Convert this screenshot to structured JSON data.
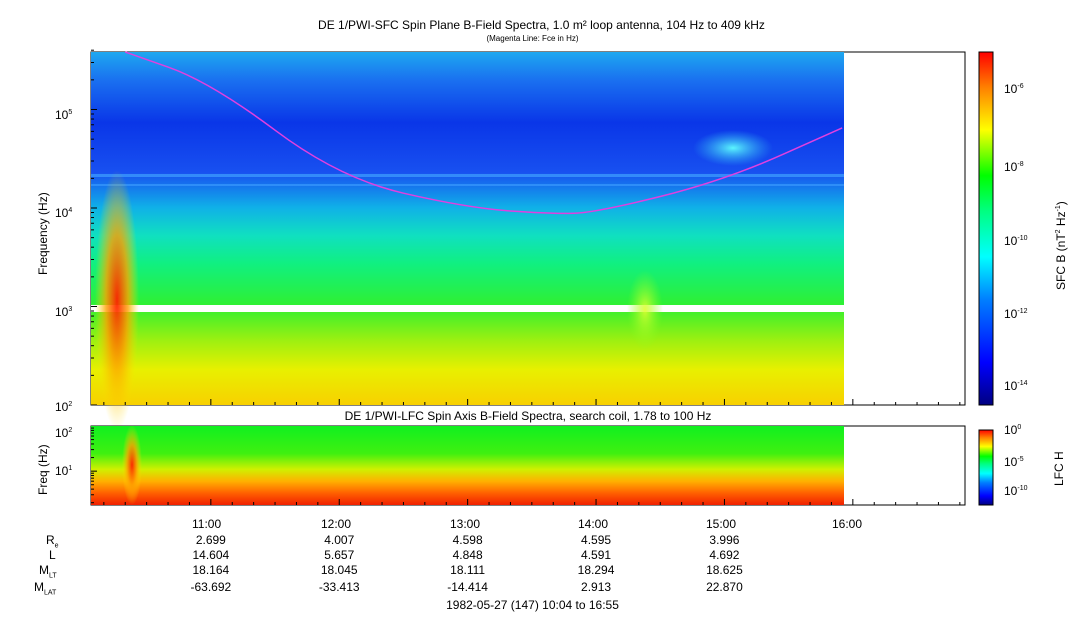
{
  "top_panel": {
    "title": "DE 1/PWI-SFC  Spin Plane B-Field Spectra, 1.0 m² loop antenna, 104 Hz to 409 kHz",
    "subtitle": "(Magenta Line: Fce in Hz)",
    "ylabel": "Frequency (Hz)",
    "yticks": [
      "10",
      "10",
      "10",
      "10"
    ],
    "ytick_exps": [
      "2",
      "3",
      "4",
      "5"
    ],
    "colorbar_label": "SFC B (nT",
    "colorbar_label_sup1": "2",
    "colorbar_label_mid": " Hz",
    "colorbar_label_sup2": "-1",
    "colorbar_label_end": ")",
    "colorbar_ticks": [
      "10",
      "10",
      "10",
      "10",
      "10"
    ],
    "colorbar_exps": [
      "-6",
      "-8",
      "-10",
      "-12",
      "-14"
    ]
  },
  "bottom_panel": {
    "title": "DE 1/PWI-LFC  Spin Axis B-Field Spectra, search coil, 1.78 to 100 Hz",
    "ylabel": "Freq (Hz)",
    "yticks": [
      "10",
      "10"
    ],
    "ytick_exps": [
      "2",
      "1"
    ],
    "colorbar_label": "LFC H",
    "colorbar_ticks": [
      "10",
      "10",
      "10"
    ],
    "colorbar_exps": [
      "0",
      "-5",
      "-10"
    ]
  },
  "time_axis": {
    "ticks": [
      "11:00",
      "12:00",
      "13:00",
      "14:00",
      "15:00",
      "16:00"
    ],
    "footer": "1982-05-27 (147) 10:04 to 16:55"
  },
  "ephemeris": {
    "labels": {
      "re": "R",
      "re_sub": "e",
      "l": "L",
      "mlt": "M",
      "mlt_sub": "LT",
      "mlat": "M",
      "mlat_sub": "LAT"
    },
    "rows": [
      {
        "time": "11:00",
        "re": "2.699",
        "l": "14.604",
        "mlt": "18.164",
        "mlat": "-63.692"
      },
      {
        "time": "12:00",
        "re": "4.007",
        "l": "5.657",
        "mlt": "18.045",
        "mlat": "-33.413"
      },
      {
        "time": "13:00",
        "re": "4.598",
        "l": "4.848",
        "mlt": "18.111",
        "mlat": "-14.414"
      },
      {
        "time": "14:00",
        "re": "4.595",
        "l": "4.591",
        "mlt": "18.294",
        "mlat": "2.913"
      },
      {
        "time": "15:00",
        "re": "3.996",
        "l": "4.692",
        "mlt": "18.625",
        "mlat": "22.870"
      }
    ]
  },
  "chart_data": {
    "type": "heatmap",
    "x_range": [
      "10:04",
      "16:55"
    ],
    "data_end": "15:57",
    "top": {
      "ylim": [
        100,
        409000
      ],
      "yscale": "log",
      "fce_curve": {
        "color": "#e040e0",
        "times": [
          "10:20",
          "11:00",
          "12:00",
          "13:00",
          "13:40",
          "14:00",
          "15:00",
          "15:55"
        ],
        "values": [
          409000,
          190000,
          20000,
          10000,
          8700,
          9000,
          19000,
          65000
        ]
      },
      "gap_hz": [
        900,
        1100
      ],
      "features": [
        {
          "name": "auroral-hiss",
          "time": [
            "10:12",
            "10:30"
          ],
          "hz": [
            100,
            30000
          ],
          "color": "#ff4000"
        },
        {
          "name": "chorus-patch",
          "time": [
            "14:55",
            "15:20"
          ],
          "hz": [
            25000,
            50000
          ],
          "color": "#30e0e0"
        },
        {
          "name": "low-freq-burst",
          "time": [
            "14:20",
            "14:35"
          ],
          "hz": [
            300,
            2500
          ],
          "color": "#c0ff40"
        }
      ]
    },
    "bottom": {
      "ylim": [
        1.78,
        100
      ],
      "yscale": "log",
      "features": [
        {
          "name": "low-freq-burst",
          "time": [
            "10:15",
            "10:30"
          ],
          "hz": [
            1.78,
            60
          ],
          "color": "#ff6000"
        }
      ]
    },
    "colorbar_top": {
      "range": [
        1e-15,
        1e-05
      ],
      "scale": "log"
    },
    "colorbar_bottom": {
      "range": [
        1e-12,
        1
      ],
      "scale": "log"
    }
  }
}
